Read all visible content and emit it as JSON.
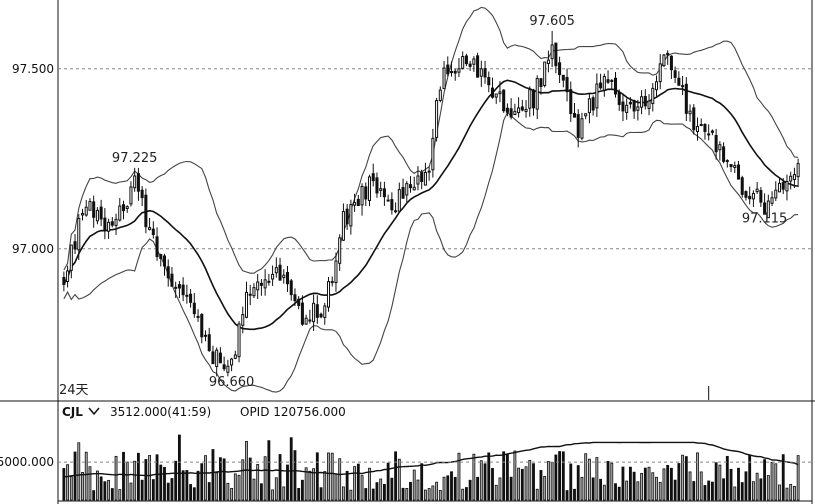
{
  "chart_data": {
    "type": "candlestick",
    "title": "",
    "xlabel": "",
    "ylabel": "",
    "price_axis": {
      "ylim": [
        96.58,
        97.68
      ],
      "ticks": [
        97.0,
        97.5
      ],
      "tick_labels": [
        "97.000",
        "97.500"
      ]
    },
    "annotations": {
      "high_1": "97.225",
      "low_1": "96.660",
      "high_2": "97.605",
      "low_2": "97.115",
      "period_marker": "24天"
    },
    "indicator": {
      "name": "CJL",
      "dropdown_icon": "chevron-down-icon",
      "value_text": "3512.000(41:59)",
      "opid_text": "OPID 120756.000",
      "ylim": [
        0,
        9500
      ],
      "tick": 5000,
      "tick_label": "5000.000"
    },
    "colors": {
      "up": "#ffffff",
      "down": "#111111",
      "outline": "#111111",
      "ma": "#111111",
      "bands": "#444444",
      "grid": "#888888"
    },
    "grid": true
  }
}
